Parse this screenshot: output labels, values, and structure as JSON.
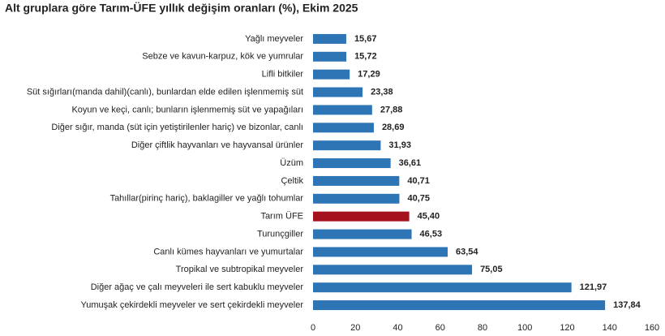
{
  "chart_data": {
    "type": "bar",
    "orientation": "horizontal",
    "title": "Alt gruplara göre Tarım-ÜFE yıllık değişim oranları (%), Ekim 2025",
    "categories": [
      "Yağlı meyveler",
      "Sebze ve kavun-karpuz, kök ve yumrular",
      "Lifli bitkiler",
      "Süt sığırları(manda dahil)(canlı), bunlardan elde edilen işlenmemiş süt",
      "Koyun ve keçi, canlı; bunların işlenmemiş süt ve yapağıları",
      "Diğer sığır, manda (süt için yetiştirilenler hariç) ve bizonlar, canlı",
      "Diğer çiftlik hayvanları ve hayvansal ürünler",
      "Üzüm",
      "Çeltik",
      "Tahıllar(pirinç hariç), baklagiller ve yağlı tohumlar",
      "Tarım ÜFE",
      "Turunçgiller",
      "Canlı kümes hayvanları ve yumurtalar",
      "Tropikal ve subtropikal meyveler",
      "Diğer ağaç ve çalı meyveleri ile sert kabuklu meyveler",
      "Yumuşak çekirdekli meyveler ve sert çekirdekli meyveler"
    ],
    "values": [
      15.67,
      15.72,
      17.29,
      23.38,
      27.88,
      28.69,
      31.93,
      36.61,
      40.71,
      40.75,
      45.4,
      46.53,
      63.54,
      75.05,
      121.97,
      137.84
    ],
    "value_labels": [
      "15,67",
      "15,72",
      "17,29",
      "23,38",
      "27,88",
      "28,69",
      "31,93",
      "36,61",
      "40,71",
      "40,75",
      "45,40",
      "46,53",
      "63,54",
      "75,05",
      "121,97",
      "137,84"
    ],
    "colors": [
      "#2e75b6",
      "#2e75b6",
      "#2e75b6",
      "#2e75b6",
      "#2e75b6",
      "#2e75b6",
      "#2e75b6",
      "#2e75b6",
      "#2e75b6",
      "#2e75b6",
      "#a5141e",
      "#2e75b6",
      "#2e75b6",
      "#2e75b6",
      "#2e75b6",
      "#2e75b6"
    ],
    "xlim": [
      0,
      160
    ],
    "xticks": [
      0,
      20,
      40,
      60,
      80,
      100,
      120,
      140,
      160
    ],
    "grid": false
  }
}
